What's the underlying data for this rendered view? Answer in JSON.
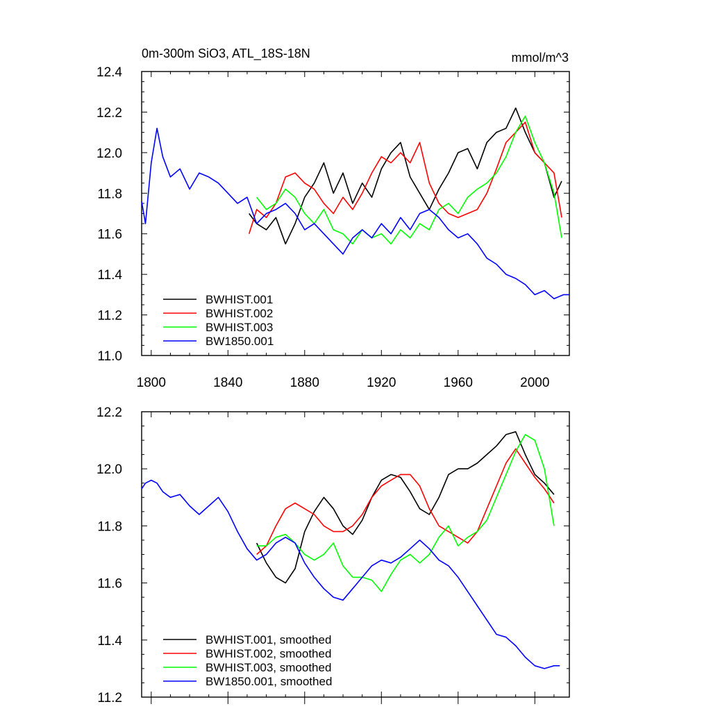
{
  "colors": {
    "black": "#000000",
    "red": "#ff0000",
    "green": "#00ff00",
    "blue": "#0000ff"
  },
  "chart_data": [
    {
      "type": "line",
      "title": "0m-300m SiO3, ATL_18S-18N",
      "units": "mmol/m^3",
      "xlabel": "",
      "ylabel": "",
      "xlim": [
        1795,
        2018
      ],
      "ylim": [
        11.0,
        12.4
      ],
      "xticks": [
        "1800",
        "1840",
        "1880",
        "1920",
        "1960",
        "2000"
      ],
      "yticks": [
        "11.0",
        "11.2",
        "11.4",
        "11.6",
        "11.8",
        "12.0",
        "12.2",
        "12.4"
      ],
      "legend_position": "bottom-left",
      "series": [
        {
          "name": "BWHIST.001",
          "color": "#000000",
          "x": [
            1851,
            1855,
            1860,
            1865,
            1870,
            1875,
            1880,
            1885,
            1890,
            1895,
            1900,
            1905,
            1910,
            1915,
            1920,
            1925,
            1930,
            1935,
            1940,
            1945,
            1950,
            1955,
            1960,
            1965,
            1970,
            1975,
            1980,
            1985,
            1990,
            1995,
            2000,
            2005,
            2010,
            2014
          ],
          "y": [
            11.7,
            11.65,
            11.62,
            11.68,
            11.55,
            11.65,
            11.78,
            11.85,
            11.95,
            11.8,
            11.9,
            11.75,
            11.85,
            11.78,
            11.92,
            12.0,
            12.05,
            11.88,
            11.8,
            11.72,
            11.82,
            11.9,
            12.0,
            12.02,
            11.92,
            12.05,
            12.1,
            12.12,
            12.22,
            12.1,
            12.0,
            11.95,
            11.78,
            11.86
          ]
        },
        {
          "name": "BWHIST.002",
          "color": "#ff0000",
          "x": [
            1851,
            1855,
            1860,
            1865,
            1870,
            1875,
            1880,
            1885,
            1890,
            1895,
            1900,
            1905,
            1910,
            1915,
            1920,
            1925,
            1930,
            1935,
            1940,
            1945,
            1950,
            1955,
            1960,
            1965,
            1970,
            1975,
            1980,
            1985,
            1990,
            1995,
            2000,
            2005,
            2010,
            2014
          ],
          "y": [
            11.6,
            11.72,
            11.68,
            11.75,
            11.88,
            11.9,
            11.85,
            11.82,
            11.75,
            11.7,
            11.78,
            11.72,
            11.8,
            11.9,
            11.98,
            11.95,
            12.0,
            11.95,
            12.05,
            11.85,
            11.75,
            11.7,
            11.68,
            11.7,
            11.72,
            11.8,
            11.92,
            12.05,
            12.1,
            12.15,
            12.0,
            11.95,
            11.9,
            11.68
          ]
        },
        {
          "name": "BWHIST.003",
          "color": "#00ff00",
          "x": [
            1855,
            1860,
            1865,
            1870,
            1875,
            1880,
            1885,
            1890,
            1895,
            1900,
            1905,
            1910,
            1915,
            1920,
            1925,
            1930,
            1935,
            1940,
            1945,
            1950,
            1955,
            1960,
            1965,
            1970,
            1975,
            1980,
            1985,
            1990,
            1995,
            2000,
            2005,
            2010,
            2014
          ],
          "y": [
            11.78,
            11.72,
            11.75,
            11.82,
            11.78,
            11.7,
            11.65,
            11.72,
            11.62,
            11.6,
            11.55,
            11.62,
            11.58,
            11.6,
            11.55,
            11.62,
            11.58,
            11.65,
            11.62,
            11.72,
            11.75,
            11.7,
            11.78,
            11.82,
            11.85,
            11.9,
            11.98,
            12.1,
            12.18,
            12.05,
            11.95,
            11.8,
            11.58
          ]
        },
        {
          "name": "BW1850.001",
          "color": "#0000ff",
          "x": [
            1795,
            1797,
            1800,
            1803,
            1806,
            1810,
            1815,
            1820,
            1825,
            1830,
            1835,
            1840,
            1845,
            1850,
            1855,
            1860,
            1865,
            1870,
            1875,
            1880,
            1885,
            1890,
            1895,
            1900,
            1905,
            1910,
            1915,
            1920,
            1925,
            1930,
            1935,
            1940,
            1945,
            1950,
            1955,
            1960,
            1965,
            1970,
            1975,
            1980,
            1985,
            1990,
            1995,
            2000,
            2005,
            2010,
            2015,
            2018
          ],
          "y": [
            11.76,
            11.65,
            11.95,
            12.12,
            11.98,
            11.88,
            11.92,
            11.82,
            11.9,
            11.88,
            11.85,
            11.8,
            11.75,
            11.78,
            11.65,
            11.7,
            11.72,
            11.75,
            11.7,
            11.62,
            11.65,
            11.6,
            11.55,
            11.5,
            11.58,
            11.62,
            11.58,
            11.65,
            11.6,
            11.68,
            11.62,
            11.7,
            11.72,
            11.68,
            11.62,
            11.58,
            11.6,
            11.55,
            11.48,
            11.45,
            11.4,
            11.38,
            11.35,
            11.3,
            11.32,
            11.28,
            11.3,
            11.3
          ]
        }
      ]
    },
    {
      "type": "line",
      "title": "",
      "xlabel": "",
      "ylabel": "",
      "xlim": [
        1795,
        2018
      ],
      "ylim": [
        11.2,
        12.2
      ],
      "yticks": [
        "11.2",
        "11.4",
        "11.6",
        "11.8",
        "12.0",
        "12.2"
      ],
      "legend_position": "bottom-left",
      "series": [
        {
          "name": "BWHIST.001, smoothed",
          "color": "#000000",
          "x": [
            1855,
            1860,
            1865,
            1870,
            1875,
            1880,
            1885,
            1890,
            1895,
            1900,
            1905,
            1910,
            1915,
            1920,
            1925,
            1930,
            1935,
            1940,
            1945,
            1950,
            1955,
            1960,
            1965,
            1970,
            1975,
            1980,
            1985,
            1990,
            1995,
            2000,
            2005,
            2010
          ],
          "y": [
            11.74,
            11.67,
            11.62,
            11.6,
            11.65,
            11.78,
            11.85,
            11.9,
            11.86,
            11.8,
            11.77,
            11.82,
            11.9,
            11.96,
            11.98,
            11.97,
            11.92,
            11.86,
            11.84,
            11.9,
            11.98,
            12.0,
            12.0,
            12.02,
            12.05,
            12.08,
            12.12,
            12.13,
            12.05,
            11.98,
            11.95,
            11.91
          ]
        },
        {
          "name": "BWHIST.002, smoothed",
          "color": "#ff0000",
          "x": [
            1855,
            1860,
            1865,
            1870,
            1875,
            1880,
            1885,
            1890,
            1895,
            1900,
            1905,
            1910,
            1915,
            1920,
            1925,
            1930,
            1935,
            1940,
            1945,
            1950,
            1955,
            1960,
            1965,
            1970,
            1975,
            1980,
            1985,
            1990,
            1995,
            2000,
            2005,
            2010
          ],
          "y": [
            11.7,
            11.73,
            11.8,
            11.86,
            11.88,
            11.86,
            11.84,
            11.8,
            11.78,
            11.78,
            11.8,
            11.84,
            11.9,
            11.94,
            11.96,
            11.98,
            11.98,
            11.94,
            11.86,
            11.8,
            11.78,
            11.76,
            11.74,
            11.78,
            11.86,
            11.94,
            12.02,
            12.07,
            12.02,
            11.97,
            11.93,
            11.88
          ]
        },
        {
          "name": "BWHIST.003, smoothed",
          "color": "#00ff00",
          "x": [
            1855,
            1860,
            1865,
            1870,
            1875,
            1880,
            1885,
            1890,
            1895,
            1900,
            1905,
            1910,
            1915,
            1920,
            1925,
            1930,
            1935,
            1940,
            1945,
            1950,
            1955,
            1960,
            1965,
            1970,
            1975,
            1980,
            1985,
            1990,
            1995,
            2000,
            2005,
            2010
          ],
          "y": [
            11.73,
            11.73,
            11.76,
            11.77,
            11.74,
            11.7,
            11.68,
            11.7,
            11.74,
            11.66,
            11.62,
            11.62,
            11.61,
            11.57,
            11.63,
            11.68,
            11.7,
            11.67,
            11.7,
            11.76,
            11.8,
            11.73,
            11.76,
            11.78,
            11.82,
            11.9,
            11.98,
            12.06,
            12.12,
            12.1,
            12.0,
            11.8
          ]
        },
        {
          "name": "BW1850.001, smoothed",
          "color": "#0000ff",
          "x": [
            1795,
            1797,
            1800,
            1803,
            1806,
            1810,
            1815,
            1820,
            1825,
            1830,
            1835,
            1840,
            1845,
            1850,
            1855,
            1860,
            1865,
            1870,
            1875,
            1880,
            1885,
            1890,
            1895,
            1900,
            1905,
            1910,
            1915,
            1920,
            1925,
            1930,
            1935,
            1940,
            1945,
            1950,
            1955,
            1960,
            1965,
            1970,
            1975,
            1980,
            1985,
            1990,
            1995,
            2000,
            2005,
            2010,
            2013
          ],
          "y": [
            11.93,
            11.95,
            11.96,
            11.95,
            11.92,
            11.9,
            11.91,
            11.87,
            11.84,
            11.87,
            11.9,
            11.85,
            11.78,
            11.72,
            11.68,
            11.7,
            11.74,
            11.76,
            11.74,
            11.67,
            11.62,
            11.58,
            11.55,
            11.54,
            11.58,
            11.62,
            11.66,
            11.68,
            11.67,
            11.69,
            11.72,
            11.75,
            11.72,
            11.68,
            11.66,
            11.62,
            11.57,
            11.52,
            11.47,
            11.42,
            11.41,
            11.38,
            11.34,
            11.31,
            11.3,
            11.31,
            11.31
          ]
        }
      ]
    }
  ]
}
